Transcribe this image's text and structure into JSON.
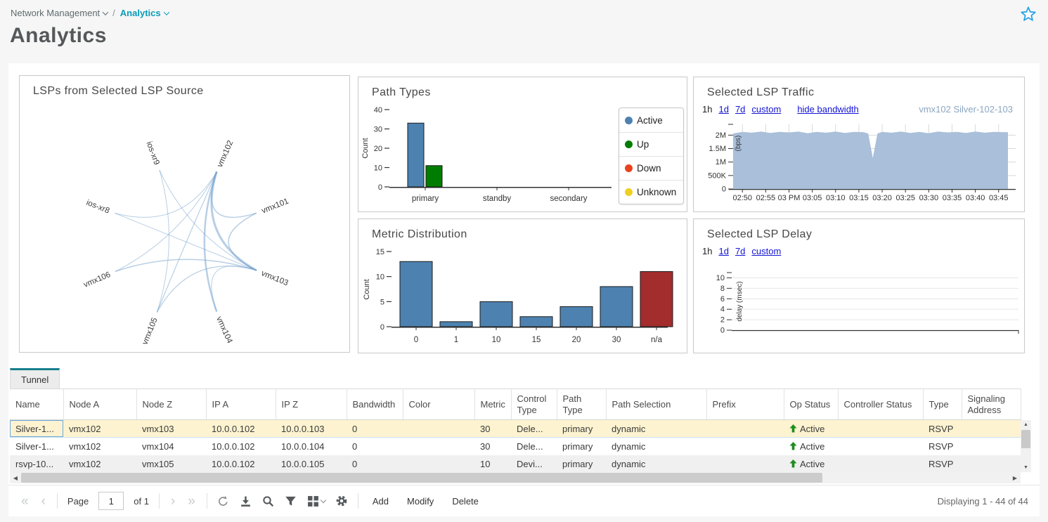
{
  "breadcrumb": {
    "root": "Network Management",
    "current": "Analytics",
    "separator": "/"
  },
  "page_title": "Analytics",
  "panels": {
    "chord": {
      "title": "LSPs from Selected LSP Source",
      "type": "chord",
      "nodes": [
        "ios-xr9",
        "vmx102",
        "vmx101",
        "vmx103",
        "vmx104",
        "vmx105",
        "vmx106",
        "ios-xr8"
      ],
      "links": [
        [
          "vmx102",
          "vmx103",
          3
        ],
        [
          "vmx102",
          "vmx104",
          2.5
        ],
        [
          "vmx102",
          "vmx101",
          1.5
        ],
        [
          "vmx102",
          "vmx105",
          1.2
        ],
        [
          "vmx102",
          "vmx106",
          1
        ],
        [
          "vmx102",
          "ios-xr8",
          1
        ],
        [
          "vmx103",
          "vmx101",
          1.5
        ],
        [
          "vmx103",
          "vmx106",
          1.5
        ],
        [
          "vmx103",
          "vmx105",
          1.2
        ],
        [
          "vmx103",
          "ios-xr8",
          1
        ],
        [
          "vmx103",
          "ios-xr9",
          1
        ],
        [
          "vmx103",
          "vmx104",
          1
        ],
        [
          "vmx105",
          "ios-xr9",
          1
        ]
      ],
      "link_color": "#71a0cc"
    },
    "path_types": {
      "title": "Path Types",
      "type": "bar",
      "ylabel": "Count",
      "ylim": [
        0,
        40
      ],
      "yticks": [
        0,
        10,
        20,
        30,
        40
      ],
      "categories": [
        "primary",
        "standby",
        "secondary"
      ],
      "series": [
        {
          "name": "Active",
          "color": "#4d82b0",
          "values": [
            33,
            0,
            0
          ]
        },
        {
          "name": "Up",
          "color": "#007d00",
          "values": [
            11,
            0,
            0
          ]
        },
        {
          "name": "Down",
          "color": "#e8431c",
          "values": [
            0,
            0,
            0
          ]
        },
        {
          "name": "Unknown",
          "color": "#f0cf1f",
          "values": [
            0,
            0,
            0
          ]
        }
      ],
      "legend_position": "right"
    },
    "traffic": {
      "title": "Selected LSP Traffic",
      "type": "area",
      "range_current": "1h",
      "ranges": [
        "1d",
        "7d",
        "custom"
      ],
      "bandwidth_link": "hide bandwidth",
      "selection": "vmx102 Silver-102-103",
      "ylabel": "(bps)",
      "ylim": [
        0,
        2400000
      ],
      "yticks": [
        [
          0,
          "0"
        ],
        [
          500000,
          "500K"
        ],
        [
          1000000,
          "1M"
        ],
        [
          1500000,
          "1.5M"
        ],
        [
          2000000,
          "2M"
        ]
      ],
      "xticks": [
        [
          2,
          "02:50"
        ],
        [
          7,
          "02:55"
        ],
        [
          12,
          "03 PM"
        ],
        [
          17,
          "03:05"
        ],
        [
          22,
          "03:10"
        ],
        [
          27,
          "03:15"
        ],
        [
          32,
          "03:20"
        ],
        [
          37,
          "03:25"
        ],
        [
          42,
          "03:30"
        ],
        [
          47,
          "03:35"
        ],
        [
          52,
          "03:40"
        ],
        [
          57,
          "03:45"
        ]
      ],
      "area_color": "#a9bfda",
      "points_min_bps": [
        [
          0,
          2060000
        ],
        [
          2,
          2120000
        ],
        [
          4,
          2090000
        ],
        [
          6,
          2130000
        ],
        [
          8,
          2080000
        ],
        [
          10,
          2120000
        ],
        [
          12,
          2100000
        ],
        [
          14,
          2130000
        ],
        [
          16,
          2070000
        ],
        [
          18,
          2120000
        ],
        [
          20,
          2090000
        ],
        [
          22,
          2130000
        ],
        [
          24,
          2080000
        ],
        [
          26,
          2120000
        ],
        [
          28,
          2110000
        ],
        [
          29,
          2060000
        ],
        [
          30,
          1150000
        ],
        [
          31,
          2060000
        ],
        [
          32,
          2120000
        ],
        [
          34,
          2090000
        ],
        [
          36,
          2130000
        ],
        [
          38,
          2080000
        ],
        [
          40,
          2120000
        ],
        [
          42,
          2070000
        ],
        [
          44,
          2130000
        ],
        [
          46,
          2100000
        ],
        [
          48,
          2120000
        ],
        [
          50,
          2080000
        ],
        [
          52,
          2130000
        ],
        [
          54,
          2090000
        ],
        [
          56,
          2120000
        ],
        [
          58,
          2110000
        ],
        [
          59,
          2110000
        ]
      ]
    },
    "metric_distribution": {
      "title": "Metric Distribution",
      "type": "bar",
      "ylabel": "Count",
      "ylim": [
        0,
        15
      ],
      "yticks": [
        0,
        5,
        10,
        15
      ],
      "categories": [
        "0",
        "1",
        "10",
        "15",
        "20",
        "30",
        "n/a"
      ],
      "values": [
        13,
        1,
        5,
        2,
        4,
        8,
        11
      ],
      "bar_colors": [
        "#4d82b0",
        "#4d82b0",
        "#4d82b0",
        "#4d82b0",
        "#4d82b0",
        "#4d82b0",
        "#a32c2c"
      ]
    },
    "delay": {
      "title": "Selected LSP Delay",
      "type": "line",
      "range_current": "1h",
      "ranges": [
        "1d",
        "7d",
        "custom"
      ],
      "ylabel": "delay (msec)",
      "ylim": [
        0,
        11
      ],
      "yticks": [
        0,
        2,
        4,
        6,
        8,
        10
      ],
      "points": []
    }
  },
  "table": {
    "tab_label": "Tunnel",
    "columns": [
      "Name",
      "Node A",
      "Node Z",
      "IP A",
      "IP Z",
      "Bandwidth",
      "Color",
      "Metric",
      "Control Type",
      "Path Type",
      "Path Selection",
      "Prefix",
      "Op Status",
      "Controller Status",
      "Type",
      "Signaling Address"
    ],
    "op_status_column_index": 12,
    "rows": [
      {
        "selected": true,
        "cells": [
          "Silver-1...",
          "vmx102",
          "vmx103",
          "10.0.0.102",
          "10.0.0.103",
          "0",
          "",
          "30",
          "Dele...",
          "primary",
          "dynamic",
          "",
          "Active",
          "",
          "RSVP",
          ""
        ]
      },
      {
        "selected": false,
        "cells": [
          "Silver-1...",
          "vmx102",
          "vmx104",
          "10.0.0.102",
          "10.0.0.104",
          "0",
          "",
          "30",
          "Dele...",
          "primary",
          "dynamic",
          "",
          "Active",
          "",
          "RSVP",
          ""
        ]
      },
      {
        "selected": false,
        "cells": [
          "rsvp-10...",
          "vmx102",
          "vmx105",
          "10.0.0.102",
          "10.0.0.105",
          "0",
          "",
          "10",
          "Devi...",
          "primary",
          "dynamic",
          "",
          "Active",
          "",
          "RSVP",
          ""
        ]
      }
    ],
    "op_status_color": "#1e8c1e"
  },
  "toolbar": {
    "page_label": "Page",
    "page_value": "1",
    "page_of": "of 1",
    "actions": [
      "Add",
      "Modify",
      "Delete"
    ],
    "displaying": "Displaying 1 - 44 of 44"
  },
  "colors": {
    "accent_teal": "#17808d",
    "link_blue": "#1414d6",
    "selected_row": "#fdf3d0",
    "star_blue": "#2aa3e6"
  }
}
